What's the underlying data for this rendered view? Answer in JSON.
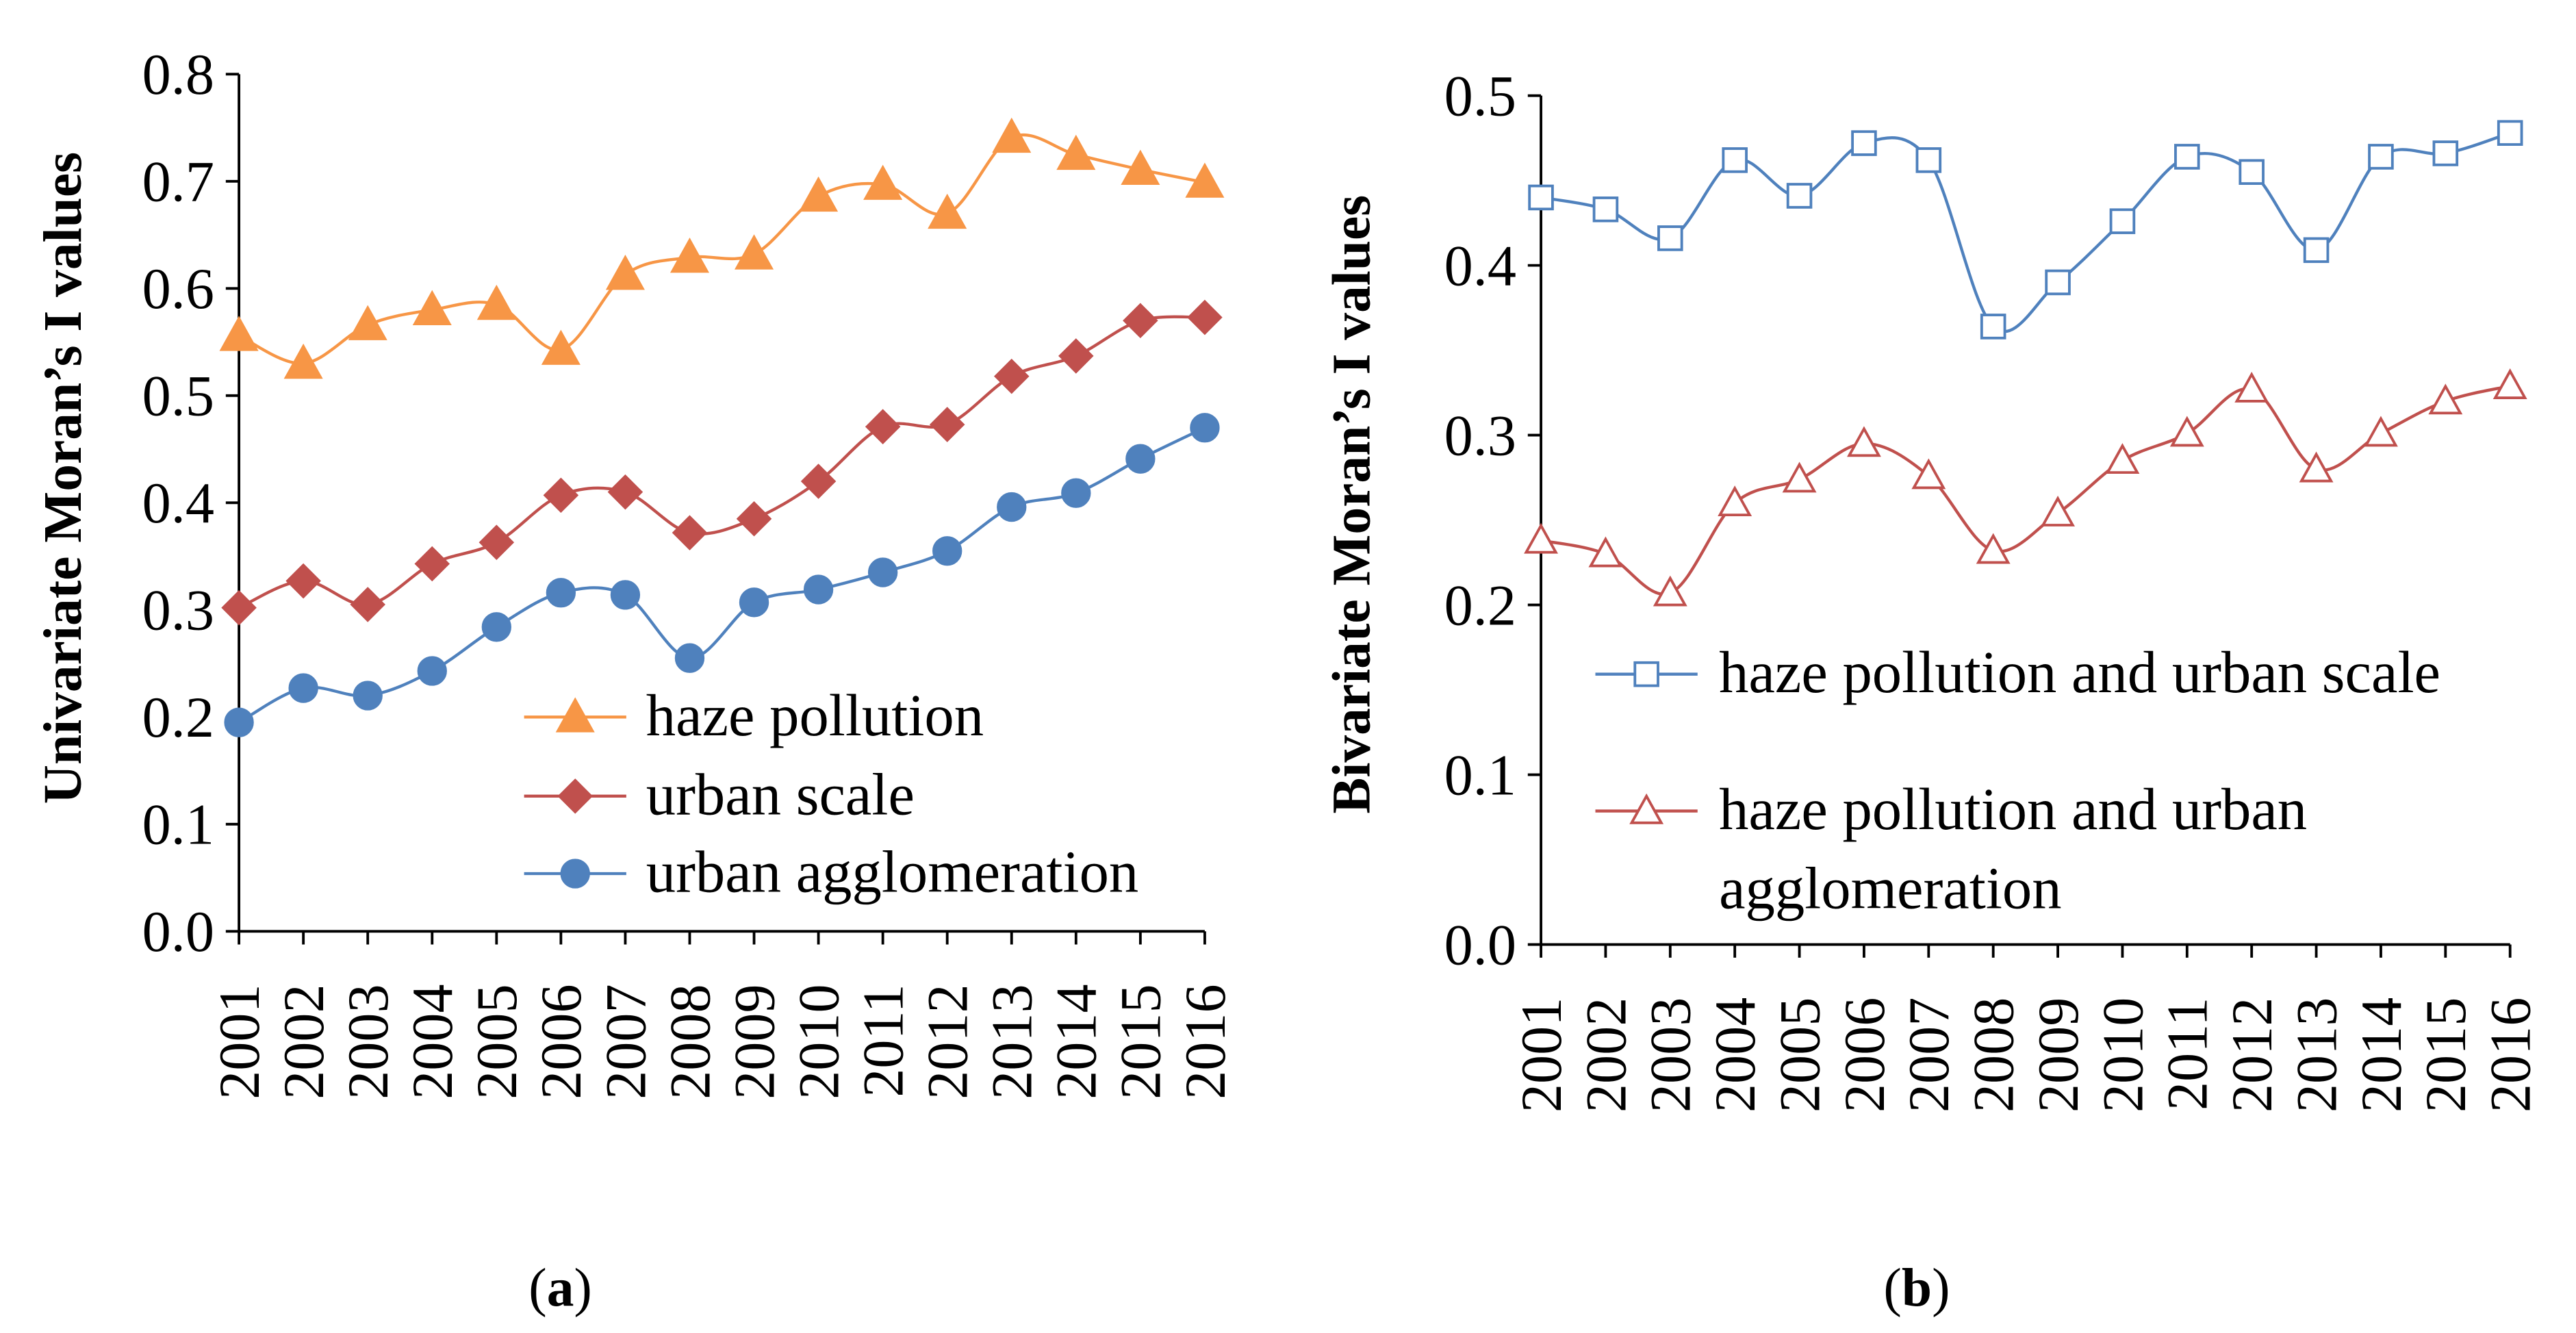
{
  "chart_data": [
    {
      "type": "line",
      "ylabel": "Univariate Moran’s I values",
      "categories": [
        "2001",
        "2002",
        "2003",
        "2004",
        "2005",
        "2006",
        "2007",
        "2008",
        "2009",
        "2010",
        "2011",
        "2012",
        "2013",
        "2014",
        "2015",
        "2016"
      ],
      "ylim": [
        0,
        0.8
      ],
      "ytick_labels": [
        "0.0",
        "0.1",
        "0.2",
        "0.3",
        "0.4",
        "0.5",
        "0.6",
        "0.7",
        "0.8"
      ],
      "grid": false,
      "legend_position": "lower-right",
      "series": [
        {
          "name": "haze pollution",
          "color": "#F79646",
          "marker": "triangle-filled",
          "values": [
            0.556,
            0.53,
            0.566,
            0.58,
            0.585,
            0.543,
            0.613,
            0.629,
            0.632,
            0.686,
            0.697,
            0.67,
            0.741,
            0.725,
            0.711,
            0.699
          ]
        },
        {
          "name": "urban scale",
          "color": "#C0504D",
          "marker": "diamond-filled",
          "values": [
            0.302,
            0.327,
            0.305,
            0.343,
            0.363,
            0.407,
            0.41,
            0.372,
            0.385,
            0.42,
            0.471,
            0.473,
            0.518,
            0.537,
            0.57,
            0.573
          ]
        },
        {
          "name": "urban agglomeration",
          "color": "#4F81BD",
          "marker": "circle-filled",
          "values": [
            0.195,
            0.227,
            0.22,
            0.243,
            0.284,
            0.316,
            0.314,
            0.255,
            0.307,
            0.319,
            0.335,
            0.355,
            0.396,
            0.409,
            0.441,
            0.47
          ]
        }
      ],
      "caption": {
        "open": "(",
        "letter": "a",
        "close": ")"
      }
    },
    {
      "type": "line",
      "ylabel": "Bivariate Moran’s I values",
      "categories": [
        "2001",
        "2002",
        "2003",
        "2004",
        "2005",
        "2006",
        "2007",
        "2008",
        "2009",
        "2010",
        "2011",
        "2012",
        "2013",
        "2014",
        "2015",
        "2016"
      ],
      "ylim": [
        0,
        0.5
      ],
      "ytick_labels": [
        "0.0",
        "0.1",
        "0.2",
        "0.3",
        "0.4",
        "0.5"
      ],
      "grid": false,
      "legend_position": "lower-left",
      "series": [
        {
          "name": "haze pollution and urban scale",
          "color": "#4F81BD",
          "marker": "square-hollow",
          "values": [
            0.44,
            0.433,
            0.416,
            0.462,
            0.441,
            0.472,
            0.462,
            0.364,
            0.39,
            0.426,
            0.464,
            0.455,
            0.409,
            0.464,
            0.466,
            0.478
          ]
        },
        {
          "name": "haze pollution and urban agglomeration",
          "color": "#C0504D",
          "marker": "triangle-hollow",
          "values": [
            0.238,
            0.23,
            0.207,
            0.26,
            0.274,
            0.295,
            0.276,
            0.232,
            0.254,
            0.285,
            0.301,
            0.327,
            0.28,
            0.301,
            0.32,
            0.329
          ]
        }
      ],
      "caption": {
        "open": "(",
        "letter": "b",
        "close": ")"
      }
    }
  ]
}
